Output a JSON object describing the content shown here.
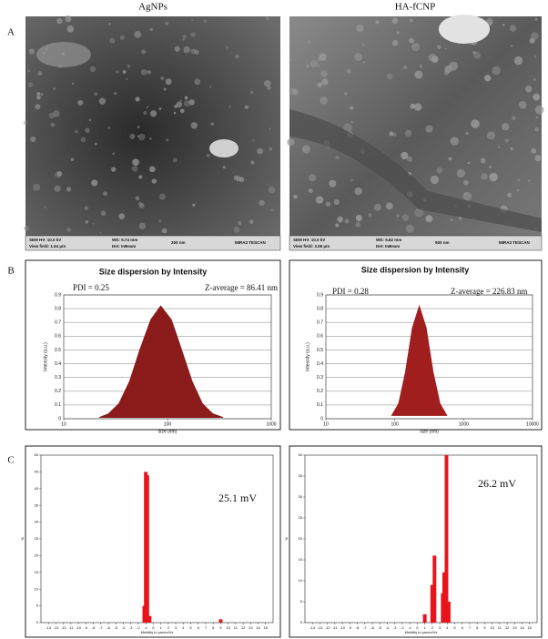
{
  "columns": [
    "AgNPs",
    "HA-fCNP"
  ],
  "row_labels": [
    "A",
    "B",
    "C"
  ],
  "sem": [
    {
      "info": [
        "SEM HV: 10.0 kV",
        "View field: 1.54 μm",
        "WD: 5.74 mm",
        "Det: InBeam",
        "200 nm",
        "MIRA3 TESCAN"
      ]
    },
    {
      "info": [
        "SEM HV: 10.0 kV",
        "View field: 3.08 μm",
        "WD: 5.82 mm",
        "Det: InBeam",
        "500 nm",
        "MIRA3 TESCAN"
      ]
    }
  ],
  "chart_data": [
    {
      "type": "area",
      "title": "Size dispersion by Intensity",
      "annotations": [
        "PDI = 0.25",
        "Z-average = 86.41 nm"
      ],
      "xlabel": "size (nm)",
      "ylabel": "Intensity (a.u.)",
      "log_x": true,
      "grid": true,
      "color": "#8b1a1a",
      "x": [
        22,
        27,
        34,
        43,
        54,
        69,
        86,
        109,
        137,
        173,
        217,
        273,
        344
      ],
      "values": [
        0.009,
        0.036,
        0.11,
        0.27,
        0.5,
        0.72,
        0.82,
        0.72,
        0.5,
        0.27,
        0.11,
        0.036,
        0.009
      ],
      "xlim": [
        10,
        1000
      ],
      "xticks": [
        10,
        100,
        1000
      ],
      "ylim": [
        0,
        0.9
      ],
      "yticks": [
        0,
        0.1,
        0.2,
        0.3,
        0.4,
        0.5,
        0.6,
        0.7,
        0.8,
        0.9
      ]
    },
    {
      "type": "area",
      "title": "Size dispersion by Intensity",
      "annotations": [
        "PDI = 0.28",
        "Z-average = 226.83 nm"
      ],
      "xlabel": "size (nm)",
      "ylabel": "Intensity (a.u.)",
      "log_x": true,
      "grid": true,
      "color": "#a01e1e",
      "x": [
        90,
        114,
        143,
        180,
        227,
        286,
        360,
        453,
        571
      ],
      "values": [
        0.023,
        0.11,
        0.34,
        0.66,
        0.82,
        0.66,
        0.34,
        0.11,
        0.023
      ],
      "xlim": [
        10,
        10000
      ],
      "xticks": [
        10,
        100,
        1000,
        10000
      ],
      "ylim": [
        0,
        0.9
      ],
      "yticks": [
        0,
        0.1,
        0.2,
        0.3,
        0.4,
        0.5,
        0.6,
        0.7,
        0.8,
        0.9
      ]
    },
    {
      "type": "bar",
      "annotations": [
        "25.1 mV"
      ],
      "xlabel": "Mobility in μmcm/Vs",
      "ylabel": "%",
      "color": "#e8141b",
      "x": [
        -1.2,
        -1,
        -0.8,
        -0.5,
        9
      ],
      "values": [
        5,
        45,
        44,
        2,
        1
      ],
      "xlim": [
        -15,
        16
      ],
      "xticks": [
        -14,
        -13,
        -12,
        -11,
        -10,
        -9,
        -8,
        -7,
        -6,
        -5,
        -4,
        -3,
        -2,
        -1,
        0,
        1,
        2,
        3,
        4,
        5,
        6,
        7,
        8,
        9,
        10,
        11,
        12,
        13,
        14,
        15
      ],
      "ylim": [
        0,
        50
      ],
      "yticks": [
        0,
        5,
        10,
        15,
        20,
        25,
        30,
        35,
        40,
        45,
        50
      ]
    },
    {
      "type": "bar",
      "annotations": [
        "26.2 mV"
      ],
      "xlabel": "Mobility in μmcm/Vs",
      "ylabel": "%",
      "color": "#e8141b",
      "x": [
        1,
        2,
        2.3,
        3.4,
        3.6,
        3.9,
        4.2
      ],
      "values": [
        2,
        9,
        16,
        7,
        12,
        40,
        5
      ],
      "xlim": [
        -15,
        16
      ],
      "xticks": [
        -14,
        -13,
        -12,
        -11,
        -10,
        -9,
        -8,
        -7,
        -6,
        -5,
        -4,
        -3,
        -2,
        -1,
        0,
        1,
        2,
        3,
        4,
        5,
        6,
        7,
        8,
        9,
        10,
        11,
        12,
        13,
        14,
        15
      ],
      "ylim": [
        0,
        40
      ],
      "yticks": [
        0,
        5,
        10,
        15,
        20,
        25,
        30,
        35,
        40
      ]
    }
  ]
}
